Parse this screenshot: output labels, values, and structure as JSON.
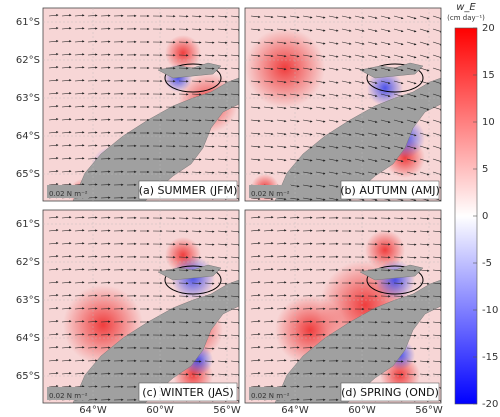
{
  "panels": [
    {
      "label": "(a) SUMMER (JFM)",
      "scale_label": "0.02 N m⁻²"
    },
    {
      "label": "(b) AUTUMN (AMJ)",
      "scale_label": "0.02 N m⁻²"
    },
    {
      "label": "(c) WINTER (JAS)",
      "scale_label": "0.02 N m⁻²"
    },
    {
      "label": "(d) SPRING (OND)",
      "scale_label": "0.02 N m⁻²"
    }
  ],
  "latitude_labels": [
    "61°S",
    "62°S",
    "63°S",
    "64°S",
    "65°S"
  ],
  "longitude_labels": [
    "64°W",
    "60°W",
    "56°W"
  ],
  "colorbar": {
    "title": "w_E",
    "unit": "(cm day⁻¹)",
    "lim": [
      -20,
      20
    ],
    "ticks": [
      20,
      15,
      10,
      5,
      0,
      -5,
      -10,
      -15,
      -20
    ]
  }
}
